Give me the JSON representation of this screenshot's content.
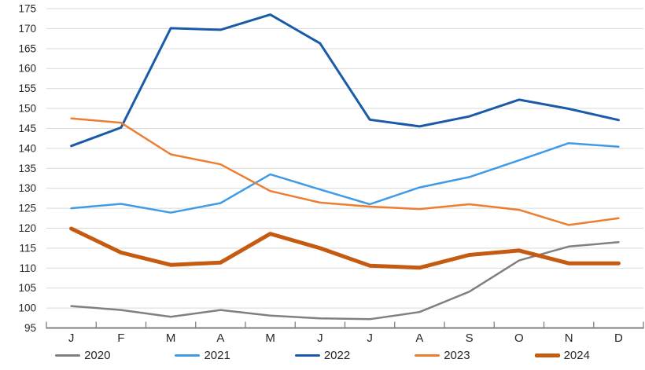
{
  "chart_data": {
    "type": "line",
    "title": "",
    "xlabel": "",
    "ylabel": "",
    "categories": [
      "J",
      "F",
      "M",
      "A",
      "M",
      "J",
      "J",
      "A",
      "S",
      "O",
      "N",
      "D"
    ],
    "y_ticks": [
      95,
      100,
      105,
      110,
      115,
      120,
      125,
      130,
      135,
      140,
      145,
      150,
      155,
      160,
      165,
      170,
      175
    ],
    "ylim": [
      95,
      175
    ],
    "y_step": 5,
    "grid": true,
    "legend_position": "bottom",
    "series": [
      {
        "name": "2020",
        "color": "#808080",
        "width": 2.5,
        "values": [
          100.5,
          99.5,
          97.8,
          99.5,
          98.1,
          97.4,
          97.2,
          99.0,
          104.1,
          111.9,
          115.4,
          116.5
        ]
      },
      {
        "name": "2021",
        "color": "#3F9BE8",
        "width": 2.5,
        "values": [
          125.0,
          126.1,
          123.9,
          126.3,
          133.5,
          129.7,
          126.0,
          130.2,
          132.8,
          137.0,
          141.3,
          140.4
        ]
      },
      {
        "name": "2022",
        "color": "#1A5BA8",
        "width": 3,
        "values": [
          140.6,
          145.2,
          170.1,
          169.7,
          173.5,
          166.3,
          147.2,
          145.5,
          148.0,
          152.2,
          149.9,
          147.1
        ]
      },
      {
        "name": "2023",
        "color": "#ED7D31",
        "width": 2.5,
        "values": [
          147.5,
          146.4,
          138.5,
          136.0,
          129.3,
          126.4,
          125.4,
          124.8,
          126.0,
          124.6,
          120.8,
          122.5
        ]
      },
      {
        "name": "2024",
        "color": "#C55A11",
        "width": 5,
        "values": [
          119.9,
          113.9,
          110.8,
          111.4,
          118.6,
          115.0,
          110.6,
          110.1,
          113.3,
          114.4,
          111.2,
          111.2
        ]
      }
    ],
    "colors": {
      "gridline": "#D9D9D9",
      "axis_line": "#808080",
      "tick": "#808080",
      "text": "#262626",
      "background": "#FFFFFF"
    }
  }
}
